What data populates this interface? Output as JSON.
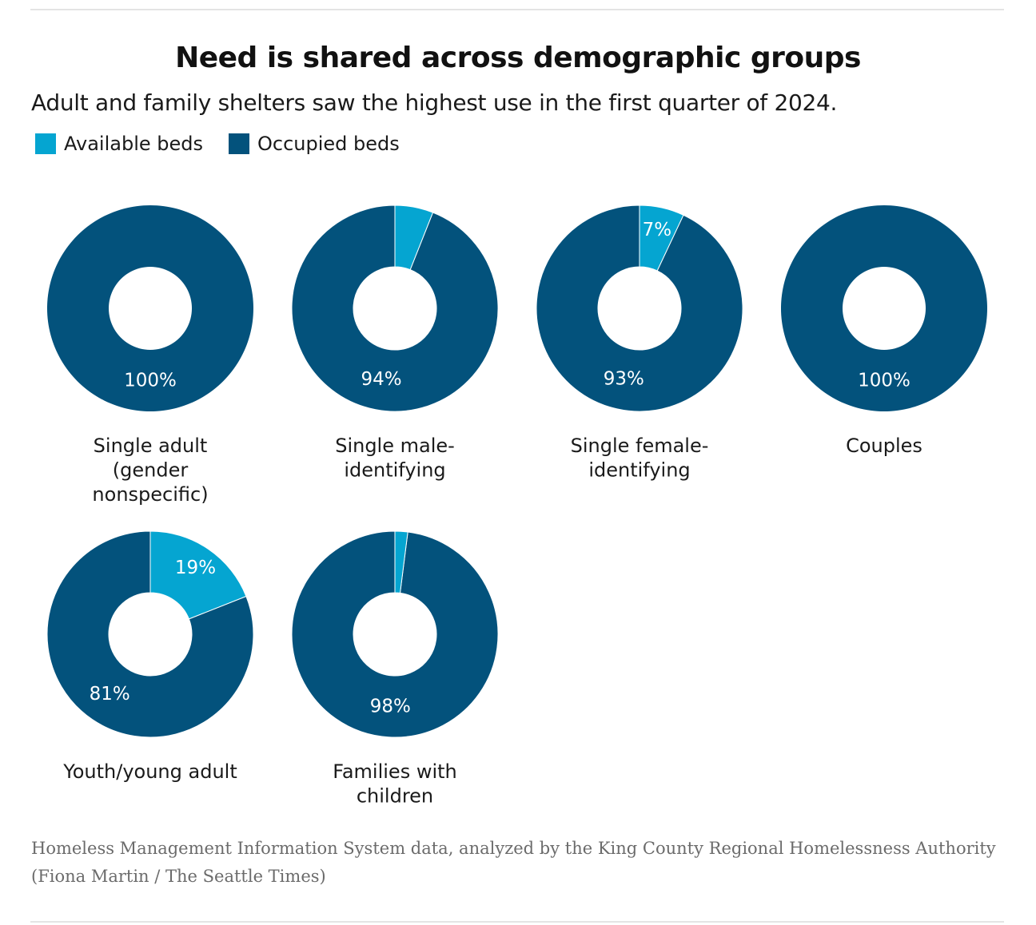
{
  "title": "Need is shared across demographic groups",
  "subtitle": "Adult and family shelters saw the highest use in the first quarter of 2024.",
  "legend": [
    {
      "label": "Available beds",
      "color": "#05a5d1"
    },
    {
      "label": "Occupied beds",
      "color": "#03527c"
    }
  ],
  "chart_data": {
    "type": "pie",
    "variant": "donut",
    "series_names": [
      "Available beds",
      "Occupied beds"
    ],
    "charts": [
      {
        "category": "Single adult (gender nonspecific)",
        "label_lines": [
          "Single adult",
          "(gender",
          "nonspecific)"
        ],
        "available_pct": 0,
        "occupied_pct": 100,
        "available_label": "",
        "occupied_label": "100%"
      },
      {
        "category": "Single male-identifying",
        "label_lines": [
          "Single male-",
          "identifying"
        ],
        "available_pct": 6,
        "occupied_pct": 94,
        "available_label": "",
        "occupied_label": "94%"
      },
      {
        "category": "Single female-identifying",
        "label_lines": [
          "Single female-",
          "identifying"
        ],
        "available_pct": 7,
        "occupied_pct": 93,
        "available_label": "7%",
        "occupied_label": "93%"
      },
      {
        "category": "Couples",
        "label_lines": [
          "Couples"
        ],
        "available_pct": 0,
        "occupied_pct": 100,
        "available_label": "",
        "occupied_label": "100%"
      },
      {
        "category": "Youth/young adult",
        "label_lines": [
          "Youth/young adult"
        ],
        "available_pct": 19,
        "occupied_pct": 81,
        "available_label": "19%",
        "occupied_label": "81%"
      },
      {
        "category": "Families with children",
        "label_lines": [
          "Families with",
          "children"
        ],
        "available_pct": 2,
        "occupied_pct": 98,
        "available_label": "",
        "occupied_label": "98%"
      }
    ]
  },
  "credit": {
    "line1": "Homeless Management Information System data, analyzed by the King County Regional Homelessness Authority",
    "line2": "(Fiona Martin / The Seattle Times)"
  }
}
